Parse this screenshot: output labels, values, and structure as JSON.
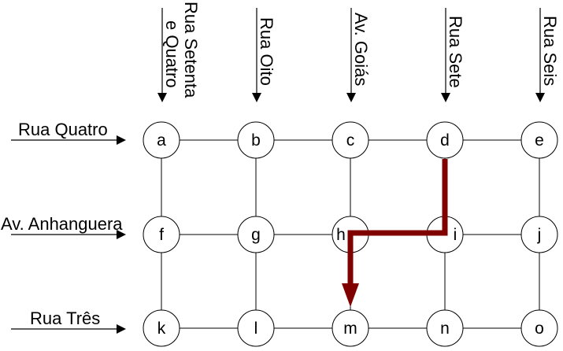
{
  "streets_vertical": [
    {
      "id": "v1",
      "lines": [
        "Rua Setenta",
        "e Quatro"
      ]
    },
    {
      "id": "v2",
      "lines": [
        "Rua Oito"
      ]
    },
    {
      "id": "v3",
      "lines": [
        "Av. Goiás"
      ]
    },
    {
      "id": "v4",
      "lines": [
        "Rua Sete"
      ]
    },
    {
      "id": "v5",
      "lines": [
        "Rua Seis"
      ]
    }
  ],
  "streets_horizontal": [
    {
      "id": "h1",
      "label": "Rua Quatro"
    },
    {
      "id": "h2",
      "label": "Av. Anhanguera"
    },
    {
      "id": "h3",
      "label": "Rua Três"
    }
  ],
  "nodes": [
    [
      "a",
      "b",
      "c",
      "d",
      "e"
    ],
    [
      "f",
      "g",
      "h",
      "i",
      "j"
    ],
    [
      "k",
      "l",
      "m",
      "n",
      "o"
    ]
  ],
  "route": {
    "path": [
      "d",
      "i",
      "h",
      "m"
    ],
    "color": "#800000"
  }
}
